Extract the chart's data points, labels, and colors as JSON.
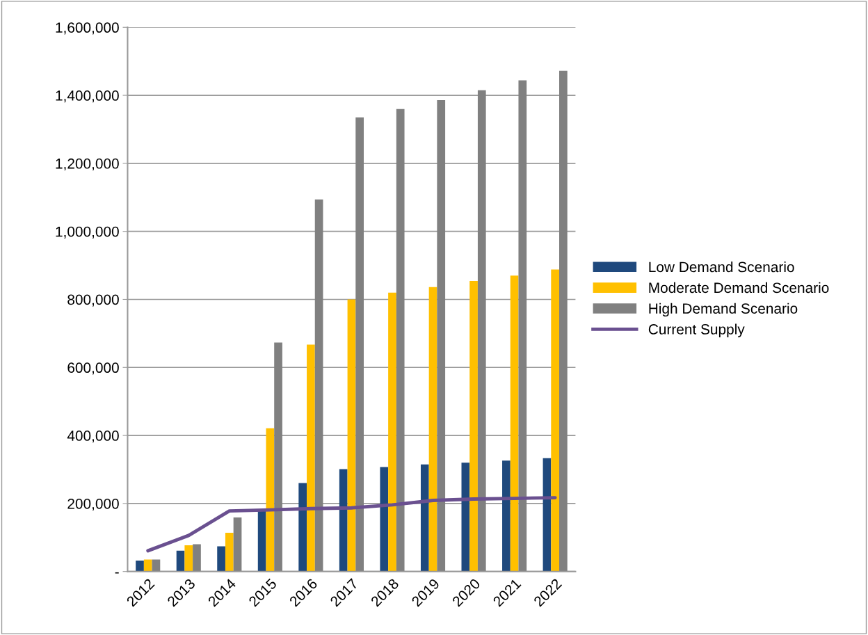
{
  "chart_data": {
    "type": "bar",
    "categories": [
      "2012",
      "2013",
      "2014",
      "2015",
      "2016",
      "2017",
      "2018",
      "2019",
      "2020",
      "2021",
      "2022"
    ],
    "series": [
      {
        "name": "Low Demand Scenario",
        "color": "#1f497d",
        "values": [
          32000,
          61000,
          74000,
          178000,
          260000,
          301000,
          307000,
          315000,
          320000,
          326000,
          333000
        ]
      },
      {
        "name": "Moderate Demand Scenario",
        "color": "#ffc000",
        "values": [
          35000,
          77000,
          114000,
          421000,
          667000,
          800000,
          820000,
          836000,
          854000,
          870000,
          888000
        ]
      },
      {
        "name": "High Demand Scenario",
        "color": "#808080",
        "values": [
          35000,
          80000,
          159000,
          673000,
          1094000,
          1335000,
          1360000,
          1386000,
          1415000,
          1444000,
          1472000
        ]
      },
      {
        "name": "Current Supply",
        "type": "line",
        "color": "#6a5090",
        "values": [
          61000,
          106000,
          178000,
          181000,
          185000,
          187000,
          196000,
          209000,
          213000,
          215000,
          217000
        ]
      }
    ],
    "ylim": [
      0,
      1600000
    ],
    "yticks": [
      {
        "value": 0,
        "label": "-"
      },
      {
        "value": 200000,
        "label": "200,000"
      },
      {
        "value": 400000,
        "label": "400,000"
      },
      {
        "value": 600000,
        "label": "600,000"
      },
      {
        "value": 800000,
        "label": "800,000"
      },
      {
        "value": 1000000,
        "label": "1,000,000"
      },
      {
        "value": 1200000,
        "label": "1,200,000"
      },
      {
        "value": 1400000,
        "label": "1,400,000"
      },
      {
        "value": 1600000,
        "label": "1,600,000"
      }
    ],
    "grid": "y",
    "legend": "right",
    "marker": "none",
    "line_style": "solid"
  }
}
